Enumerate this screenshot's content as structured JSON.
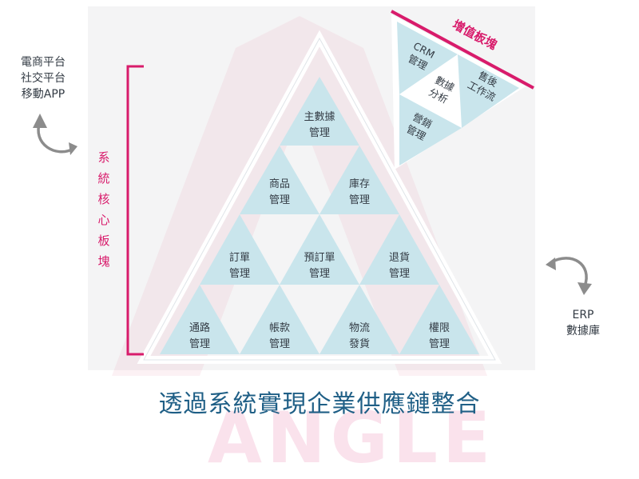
{
  "left_note": {
    "lines": [
      "電商平台",
      "社交平台",
      "移動APP"
    ]
  },
  "right_note": {
    "lines": [
      "ERP",
      "數據庫"
    ]
  },
  "core_label": {
    "chars": [
      "系",
      "統",
      "核",
      "心",
      "板",
      "塊"
    ]
  },
  "pyramid": {
    "row1": [
      [
        "主數據",
        "管理"
      ]
    ],
    "row2": [
      [
        "商品",
        "管理"
      ],
      [
        "庫存",
        "管理"
      ]
    ],
    "row3": [
      [
        "訂單",
        "管理"
      ],
      [
        "預訂單",
        "管理"
      ],
      [
        "退貨",
        "管理"
      ]
    ],
    "row4": [
      [
        "通路",
        "管理"
      ],
      [
        "帳款",
        "管理"
      ],
      [
        "物流",
        "發貨"
      ],
      [
        "權限",
        "管理"
      ]
    ]
  },
  "value_added": {
    "title": "增值板塊",
    "crm": [
      "CRM",
      "管理"
    ],
    "analysis": [
      "數據",
      "分析"
    ],
    "after_sales": [
      "售後",
      "工作流"
    ],
    "marketing": [
      "營銷",
      "管理"
    ]
  },
  "caption": "透過系統實現企業供應鏈整合",
  "watermark": "ANGLE",
  "colors": {
    "accent": "#d81b6b",
    "cell_fill": "#c9e5ec",
    "caption": "#1f5f86",
    "arrow": "#8c8c8c"
  }
}
